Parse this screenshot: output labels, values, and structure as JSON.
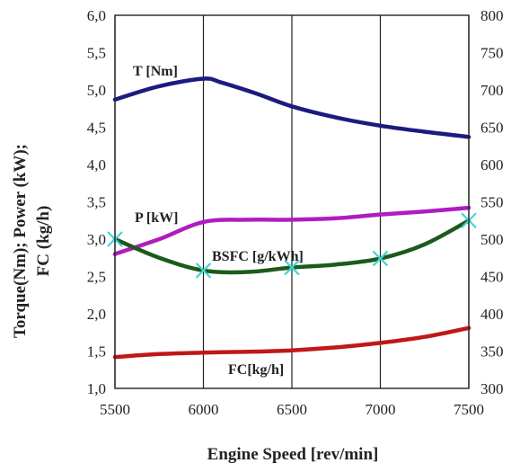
{
  "chart_data": {
    "type": "line",
    "title": "",
    "xlabel": "Engine Speed [rev/min]",
    "ylabel_left": "Torque(Nm); Power (kW); FC (kg/h)",
    "ylabel_right": "",
    "xlim": [
      5500,
      7500
    ],
    "ylim_left": [
      1.0,
      6.0
    ],
    "ylim_right": [
      300,
      800
    ],
    "x_ticks": [
      "5500",
      "6000",
      "6500",
      "7000",
      "7500"
    ],
    "y_left_ticks": [
      "1,0",
      "1,5",
      "2,0",
      "2,5",
      "3,0",
      "3,5",
      "4,0",
      "4,5",
      "5,0",
      "5,5",
      "6,0"
    ],
    "y_right_ticks": [
      "300",
      "350",
      "400",
      "450",
      "500",
      "550",
      "600",
      "650",
      "700",
      "750",
      "800"
    ],
    "grid_vertical": true,
    "grid_horizontal": false,
    "series": [
      {
        "name": "T [Nm]",
        "axis": "left",
        "color": "#1b1b80",
        "x": [
          5500,
          5750,
          6000,
          6100,
          6300,
          6500,
          6750,
          7000,
          7250,
          7500
        ],
        "y": [
          4.87,
          5.05,
          5.15,
          5.1,
          4.95,
          4.78,
          4.63,
          4.52,
          4.44,
          4.37
        ]
      },
      {
        "name": "P [kW]",
        "axis": "left",
        "color": "#b01cc0",
        "x": [
          5500,
          5750,
          6000,
          6250,
          6500,
          6750,
          7000,
          7250,
          7500
        ],
        "y": [
          2.8,
          3.0,
          3.23,
          3.26,
          3.26,
          3.28,
          3.33,
          3.37,
          3.42
        ]
      },
      {
        "name": "BSFC [g/kWh]",
        "axis": "right",
        "color": "#1c5a1c",
        "marker": "x",
        "marker_color": "#3fd6d6",
        "x": [
          5500,
          5750,
          6000,
          6250,
          6500,
          6750,
          7000,
          7250,
          7500
        ],
        "y": [
          500,
          475,
          458,
          456,
          462,
          466,
          474,
          493,
          525
        ],
        "markers_at": [
          5500,
          6000,
          6500,
          7000,
          7500
        ]
      },
      {
        "name": "FC[kg/h]",
        "axis": "left",
        "color": "#c01818",
        "x": [
          5500,
          5750,
          6000,
          6250,
          6500,
          6750,
          7000,
          7250,
          7500
        ],
        "y": [
          1.42,
          1.46,
          1.48,
          1.49,
          1.51,
          1.55,
          1.61,
          1.69,
          1.81
        ]
      }
    ]
  }
}
